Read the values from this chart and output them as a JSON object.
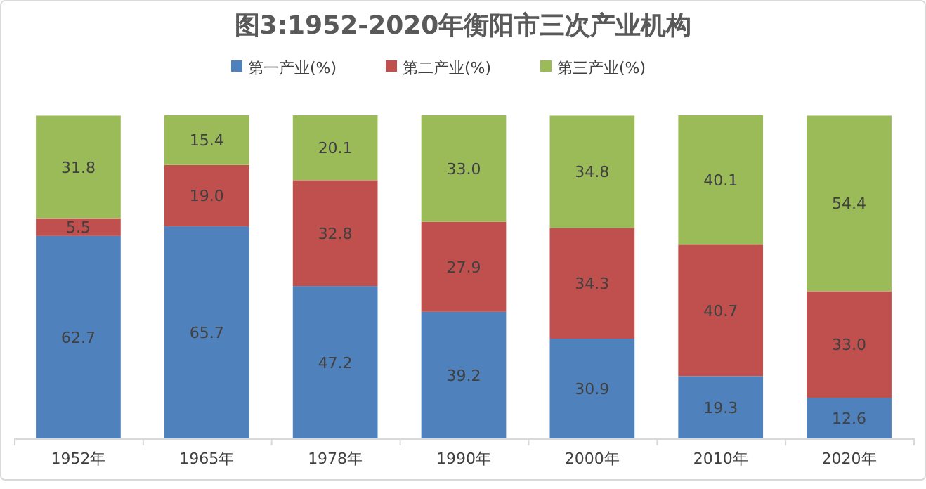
{
  "chart_data": {
    "type": "bar",
    "title": "图3:1952-2020年衡阳市三次产业机构",
    "categories": [
      "1952年",
      "1965年",
      "1978年",
      "1990年",
      "2000年",
      "2010年",
      "2020年"
    ],
    "series": [
      {
        "name": "第一产业(%)",
        "color": "#4f81bd",
        "values": [
          62.7,
          65.7,
          47.2,
          39.2,
          30.9,
          19.3,
          12.6
        ],
        "value_labels": [
          "62.7",
          "65.7",
          "47.2",
          "39.2",
          "30.9",
          "19.3",
          "12.6"
        ]
      },
      {
        "name": "第二产业(%)",
        "color": "#c0504d",
        "values": [
          5.5,
          19.0,
          32.8,
          27.9,
          34.3,
          40.7,
          33.0
        ],
        "value_labels": [
          "5.5",
          "19.0",
          "32.8",
          "27.9",
          "34.3",
          "40.7",
          "33.0"
        ]
      },
      {
        "name": "第三产业(%)",
        "color": "#9bbb59",
        "values": [
          31.8,
          15.4,
          20.1,
          33.0,
          34.8,
          40.1,
          54.4
        ],
        "value_labels": [
          "31.8",
          "15.4",
          "20.1",
          "33.0",
          "34.8",
          "40.1",
          "54.4"
        ]
      }
    ],
    "stacked": true,
    "legend": "top"
  }
}
